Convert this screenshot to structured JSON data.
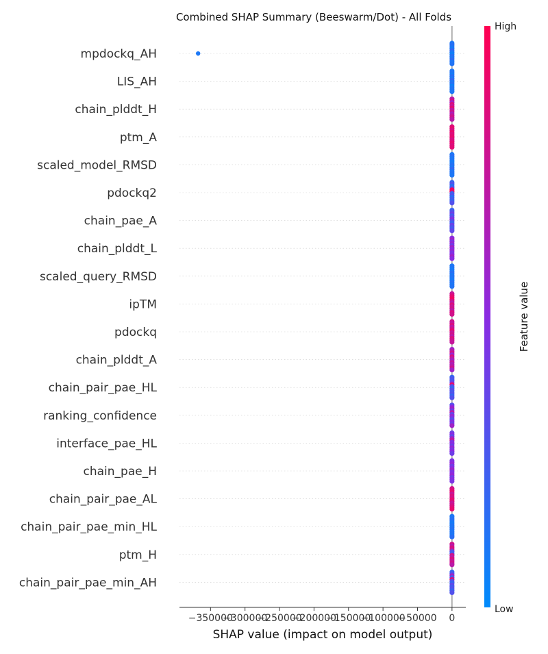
{
  "chart_data": {
    "type": "scatter",
    "subtype": "beeswarm",
    "title": "Combined SHAP Summary (Beeswarm/Dot) - All Folds",
    "xlabel": "SHAP value (impact on model output)",
    "xlim": [
      -395000,
      20000
    ],
    "x_ticks": [
      {
        "value": -350000,
        "label": "−350000"
      },
      {
        "value": -300000,
        "label": "−300000"
      },
      {
        "value": -250000,
        "label": "−250000"
      },
      {
        "value": -200000,
        "label": "−200000"
      },
      {
        "value": -150000,
        "label": "−150000"
      },
      {
        "value": -100000,
        "label": "−100000"
      },
      {
        "value": -50000,
        "label": "−50000"
      },
      {
        "value": 0,
        "label": "0"
      }
    ],
    "features": [
      {
        "name": "mpdockq_AH",
        "points": [
          {
            "x": -368000,
            "f": 0.1
          },
          {
            "x": 0,
            "f": 0.1
          },
          {
            "x": 0,
            "f": 0.15
          },
          {
            "x": 0,
            "f": 0.12
          },
          {
            "x": 0,
            "f": 0.08
          },
          {
            "x": 0,
            "f": 0.2
          },
          {
            "x": 0,
            "f": 0.1
          },
          {
            "x": 0,
            "f": 0.05
          },
          {
            "x": 0,
            "f": 0.14
          },
          {
            "x": 0,
            "f": 0.1
          },
          {
            "x": 0,
            "f": 0.18
          },
          {
            "x": 0,
            "f": 0.1
          },
          {
            "x": 0,
            "f": 0.12
          }
        ]
      },
      {
        "name": "LIS_AH",
        "points": [
          {
            "x": 0,
            "f": 0.1
          },
          {
            "x": 0,
            "f": 0.12
          },
          {
            "x": 0,
            "f": 0.08
          },
          {
            "x": 0,
            "f": 0.15
          },
          {
            "x": 0,
            "f": 0.1
          },
          {
            "x": 0,
            "f": 0.2
          },
          {
            "x": 0,
            "f": 0.1
          },
          {
            "x": 0,
            "f": 0.14
          },
          {
            "x": 0,
            "f": 0.05
          },
          {
            "x": 0,
            "f": 0.1
          },
          {
            "x": 0,
            "f": 0.12
          },
          {
            "x": 0,
            "f": 0.1
          }
        ]
      },
      {
        "name": "chain_plddt_H",
        "points": [
          {
            "x": 0,
            "f": 0.7
          },
          {
            "x": 0,
            "f": 0.8
          },
          {
            "x": 0,
            "f": 0.6
          },
          {
            "x": 0,
            "f": 0.85
          },
          {
            "x": 0,
            "f": 0.75
          },
          {
            "x": 0,
            "f": 0.9
          },
          {
            "x": 0,
            "f": 0.7
          },
          {
            "x": 0,
            "f": 0.8
          },
          {
            "x": 0,
            "f": 0.65
          },
          {
            "x": 0,
            "f": 0.75
          },
          {
            "x": 0,
            "f": 0.8
          },
          {
            "x": 0,
            "f": 0.7
          }
        ]
      },
      {
        "name": "ptm_A",
        "points": [
          {
            "x": 0,
            "f": 0.85
          },
          {
            "x": 0,
            "f": 0.9
          },
          {
            "x": 0,
            "f": 0.8
          },
          {
            "x": 0,
            "f": 0.92
          },
          {
            "x": 0,
            "f": 0.85
          },
          {
            "x": 0,
            "f": 0.88
          },
          {
            "x": 0,
            "f": 0.9
          },
          {
            "x": 0,
            "f": 0.82
          },
          {
            "x": 0,
            "f": 0.86
          },
          {
            "x": 0,
            "f": 0.9
          },
          {
            "x": 0,
            "f": 0.84
          },
          {
            "x": 0,
            "f": 0.88
          }
        ]
      },
      {
        "name": "scaled_model_RMSD",
        "points": [
          {
            "x": 0,
            "f": 0.1
          },
          {
            "x": 0,
            "f": 0.15
          },
          {
            "x": 0,
            "f": 0.1
          },
          {
            "x": 0,
            "f": 0.12
          },
          {
            "x": 0,
            "f": 0.08
          },
          {
            "x": 0,
            "f": 0.1
          },
          {
            "x": 0,
            "f": 0.14
          },
          {
            "x": 0,
            "f": 0.1
          },
          {
            "x": 0,
            "f": 0.2
          },
          {
            "x": 0,
            "f": 0.1
          },
          {
            "x": 0,
            "f": 0.12
          },
          {
            "x": 0,
            "f": 0.1
          }
        ]
      },
      {
        "name": "pdockq2",
        "points": [
          {
            "x": 0,
            "f": 0.2
          },
          {
            "x": 0,
            "f": 0.3
          },
          {
            "x": 0,
            "f": 0.15
          },
          {
            "x": 0,
            "f": 0.25
          },
          {
            "x": 0,
            "f": 0.95
          },
          {
            "x": 0,
            "f": 0.9
          },
          {
            "x": 0,
            "f": 0.2
          },
          {
            "x": 0,
            "f": 0.3
          },
          {
            "x": 0,
            "f": 0.15
          },
          {
            "x": 0,
            "f": 0.25
          },
          {
            "x": 0,
            "f": 0.2
          },
          {
            "x": 0,
            "f": 0.3
          }
        ]
      },
      {
        "name": "chain_pae_A",
        "points": [
          {
            "x": 0,
            "f": 0.2
          },
          {
            "x": 0,
            "f": 0.3
          },
          {
            "x": 0,
            "f": 0.4
          },
          {
            "x": 0,
            "f": 0.25
          },
          {
            "x": 0,
            "f": 0.35
          },
          {
            "x": 0,
            "f": 0.5
          },
          {
            "x": 0,
            "f": 0.3
          },
          {
            "x": 0,
            "f": 0.2
          },
          {
            "x": 0,
            "f": 0.4
          },
          {
            "x": 0,
            "f": 0.3
          },
          {
            "x": 0,
            "f": 0.25
          },
          {
            "x": 0,
            "f": 0.35
          }
        ]
      },
      {
        "name": "chain_plddt_L",
        "points": [
          {
            "x": 0,
            "f": 0.5
          },
          {
            "x": 0,
            "f": 0.6
          },
          {
            "x": 0,
            "f": 0.45
          },
          {
            "x": 0,
            "f": 0.55
          },
          {
            "x": 0,
            "f": 0.4
          },
          {
            "x": 0,
            "f": 0.6
          },
          {
            "x": 0,
            "f": 0.5
          },
          {
            "x": 0,
            "f": 0.55
          },
          {
            "x": 0,
            "f": 0.45
          },
          {
            "x": 0,
            "f": 0.5
          },
          {
            "x": 0,
            "f": 0.6
          },
          {
            "x": 0,
            "f": 0.5
          }
        ]
      },
      {
        "name": "scaled_query_RMSD",
        "points": [
          {
            "x": 0,
            "f": 0.1
          },
          {
            "x": 0,
            "f": 0.12
          },
          {
            "x": 0,
            "f": 0.08
          },
          {
            "x": 0,
            "f": 0.1
          },
          {
            "x": 0,
            "f": 0.15
          },
          {
            "x": 0,
            "f": 0.1
          },
          {
            "x": 0,
            "f": 0.12
          },
          {
            "x": 0,
            "f": 0.1
          },
          {
            "x": 0,
            "f": 0.08
          },
          {
            "x": 0,
            "f": 0.14
          },
          {
            "x": 0,
            "f": 0.1
          },
          {
            "x": 0,
            "f": 0.12
          }
        ]
      },
      {
        "name": "ipTM",
        "points": [
          {
            "x": 0,
            "f": 0.75
          },
          {
            "x": 0,
            "f": 0.85
          },
          {
            "x": 0,
            "f": 0.9
          },
          {
            "x": 0,
            "f": 0.95
          },
          {
            "x": 0,
            "f": 0.8
          },
          {
            "x": 0,
            "f": 0.7
          },
          {
            "x": 0,
            "f": 0.85
          },
          {
            "x": 0,
            "f": 0.75
          },
          {
            "x": 0,
            "f": 0.8
          },
          {
            "x": 0,
            "f": 0.7
          },
          {
            "x": 0,
            "f": 0.85
          },
          {
            "x": 0,
            "f": 0.8
          }
        ]
      },
      {
        "name": "pdockq",
        "points": [
          {
            "x": 0,
            "f": 0.8
          },
          {
            "x": 0,
            "f": 0.75
          },
          {
            "x": 0,
            "f": 0.85
          },
          {
            "x": 0,
            "f": 0.7
          },
          {
            "x": 0,
            "f": 0.8
          },
          {
            "x": 0,
            "f": 0.9
          },
          {
            "x": 0,
            "f": 0.75
          },
          {
            "x": 0,
            "f": 0.8
          },
          {
            "x": 0,
            "f": 0.7
          },
          {
            "x": 0,
            "f": 0.85
          },
          {
            "x": 0,
            "f": 0.8
          },
          {
            "x": 0,
            "f": 0.75
          }
        ]
      },
      {
        "name": "chain_plddt_A",
        "points": [
          {
            "x": 0,
            "f": 0.6
          },
          {
            "x": 0,
            "f": 0.7
          },
          {
            "x": 0,
            "f": 0.8
          },
          {
            "x": 0,
            "f": 0.55
          },
          {
            "x": 0,
            "f": 0.85
          },
          {
            "x": 0,
            "f": 0.7
          },
          {
            "x": 0,
            "f": 0.6
          },
          {
            "x": 0,
            "f": 0.75
          },
          {
            "x": 0,
            "f": 0.65
          },
          {
            "x": 0,
            "f": 0.7
          },
          {
            "x": 0,
            "f": 0.8
          },
          {
            "x": 0,
            "f": 0.6
          }
        ]
      },
      {
        "name": "chain_pair_pae_HL",
        "points": [
          {
            "x": 0,
            "f": 0.2
          },
          {
            "x": 0,
            "f": 0.3
          },
          {
            "x": 0,
            "f": 0.25
          },
          {
            "x": 0,
            "f": 0.4
          },
          {
            "x": 0,
            "f": 0.9
          },
          {
            "x": 0,
            "f": 0.3
          },
          {
            "x": 0,
            "f": 0.2
          },
          {
            "x": 0,
            "f": 0.35
          },
          {
            "x": 0,
            "f": 0.25
          },
          {
            "x": 0,
            "f": 0.3
          },
          {
            "x": 0,
            "f": 0.2
          },
          {
            "x": 0,
            "f": 0.3
          }
        ]
      },
      {
        "name": "ranking_confidence",
        "points": [
          {
            "x": 0,
            "f": 0.3
          },
          {
            "x": 0,
            "f": 0.5
          },
          {
            "x": 0,
            "f": 0.6
          },
          {
            "x": 0,
            "f": 0.4
          },
          {
            "x": 0,
            "f": 0.7
          },
          {
            "x": 0,
            "f": 0.35
          },
          {
            "x": 0,
            "f": 0.55
          },
          {
            "x": 0,
            "f": 0.45
          },
          {
            "x": 0,
            "f": 0.3
          },
          {
            "x": 0,
            "f": 0.5
          },
          {
            "x": 0,
            "f": 0.4
          },
          {
            "x": 0,
            "f": 0.6
          }
        ]
      },
      {
        "name": "interface_pae_HL",
        "points": [
          {
            "x": 0,
            "f": 0.4
          },
          {
            "x": 0,
            "f": 0.5
          },
          {
            "x": 0,
            "f": 0.35
          },
          {
            "x": 0,
            "f": 0.6
          },
          {
            "x": 0,
            "f": 0.75
          },
          {
            "x": 0,
            "f": 0.45
          },
          {
            "x": 0,
            "f": 0.5
          },
          {
            "x": 0,
            "f": 0.4
          },
          {
            "x": 0,
            "f": 0.55
          },
          {
            "x": 0,
            "f": 0.45
          },
          {
            "x": 0,
            "f": 0.5
          },
          {
            "x": 0,
            "f": 0.4
          }
        ]
      },
      {
        "name": "chain_pae_H",
        "points": [
          {
            "x": 0,
            "f": 0.45
          },
          {
            "x": 0,
            "f": 0.5
          },
          {
            "x": 0,
            "f": 0.55
          },
          {
            "x": 0,
            "f": 0.4
          },
          {
            "x": 0,
            "f": 0.5
          },
          {
            "x": 0,
            "f": 0.6
          },
          {
            "x": 0,
            "f": 0.45
          },
          {
            "x": 0,
            "f": 0.5
          },
          {
            "x": 0,
            "f": 0.55
          },
          {
            "x": 0,
            "f": 0.4
          },
          {
            "x": 0,
            "f": 0.5
          },
          {
            "x": 0,
            "f": 0.45
          }
        ]
      },
      {
        "name": "chain_pair_pae_AL",
        "points": [
          {
            "x": 0,
            "f": 0.8
          },
          {
            "x": 0,
            "f": 0.85
          },
          {
            "x": 0,
            "f": 0.9
          },
          {
            "x": 0,
            "f": 0.75
          },
          {
            "x": 0,
            "f": 0.85
          },
          {
            "x": 0,
            "f": 0.8
          },
          {
            "x": 0,
            "f": 0.9
          },
          {
            "x": 0,
            "f": 0.85
          },
          {
            "x": 0,
            "f": 0.75
          },
          {
            "x": 0,
            "f": 0.8
          },
          {
            "x": 0,
            "f": 0.85
          },
          {
            "x": 0,
            "f": 0.9
          }
        ]
      },
      {
        "name": "chain_pair_pae_min_HL",
        "points": [
          {
            "x": 0,
            "f": 0.1
          },
          {
            "x": 0,
            "f": 0.12
          },
          {
            "x": 0,
            "f": 0.15
          },
          {
            "x": 0,
            "f": 0.1
          },
          {
            "x": 0,
            "f": 0.08
          },
          {
            "x": 0,
            "f": 0.12
          },
          {
            "x": 0,
            "f": 0.1
          },
          {
            "x": 0,
            "f": 0.14
          },
          {
            "x": 0,
            "f": 0.1
          },
          {
            "x": 0,
            "f": 0.12
          },
          {
            "x": 0,
            "f": 0.1
          },
          {
            "x": 0,
            "f": 0.15
          }
        ]
      },
      {
        "name": "ptm_H",
        "points": [
          {
            "x": 0,
            "f": 0.8
          },
          {
            "x": 0,
            "f": 0.7
          },
          {
            "x": 0,
            "f": 0.85
          },
          {
            "x": 0,
            "f": 0.75
          },
          {
            "x": 0,
            "f": 0.3
          },
          {
            "x": 0,
            "f": 0.25
          },
          {
            "x": 0,
            "f": 0.8
          },
          {
            "x": 0,
            "f": 0.7
          },
          {
            "x": 0,
            "f": 0.85
          },
          {
            "x": 0,
            "f": 0.75
          },
          {
            "x": 0,
            "f": 0.8
          },
          {
            "x": 0,
            "f": 0.7
          }
        ]
      },
      {
        "name": "chain_pair_pae_min_AH",
        "points": [
          {
            "x": 0,
            "f": 0.2
          },
          {
            "x": 0,
            "f": 0.3
          },
          {
            "x": 0,
            "f": 0.6
          },
          {
            "x": 0,
            "f": 0.25
          },
          {
            "x": 0,
            "f": 0.85
          },
          {
            "x": 0,
            "f": 0.3
          },
          {
            "x": 0,
            "f": 0.2
          },
          {
            "x": 0,
            "f": 0.35
          },
          {
            "x": 0,
            "f": 0.25
          },
          {
            "x": 0,
            "f": 0.3
          },
          {
            "x": 0,
            "f": 0.2
          },
          {
            "x": 0,
            "f": 0.3
          }
        ]
      }
    ],
    "colorbar": {
      "label": "Feature value",
      "high_label": "High",
      "low_label": "Low",
      "low_color": "#008bfb",
      "high_color": "#ff0051",
      "mid_color": "#8a2be2"
    },
    "grid": false
  }
}
